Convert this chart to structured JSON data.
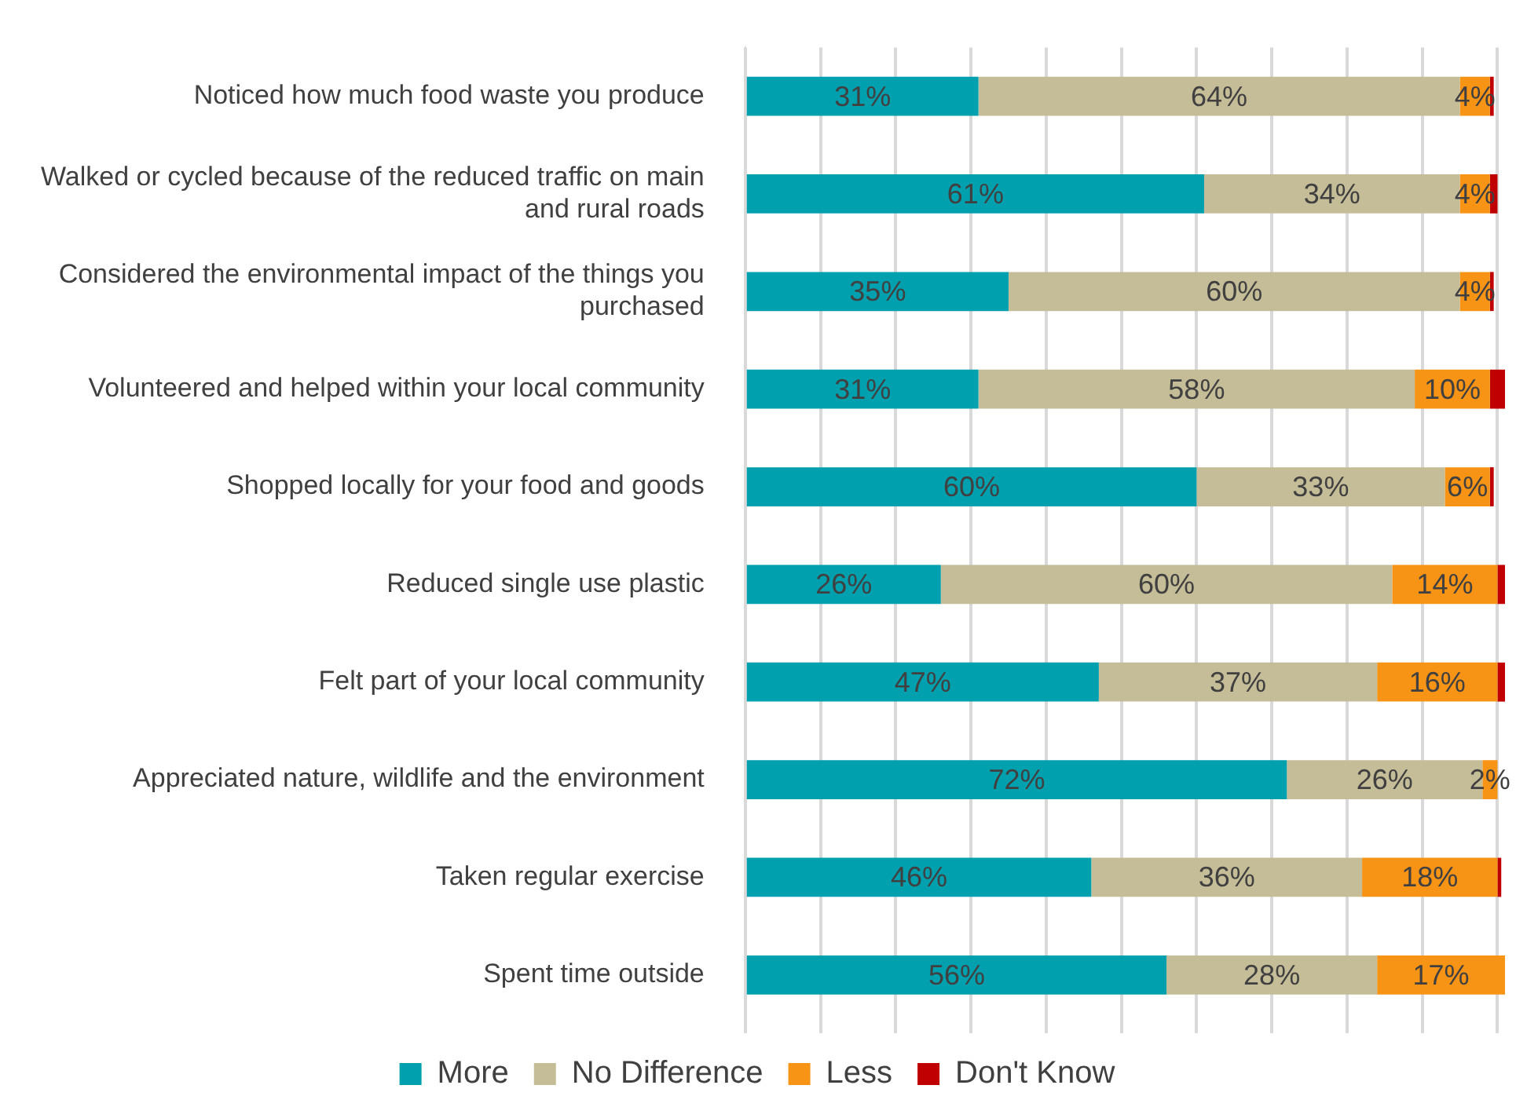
{
  "chart_data": {
    "type": "bar",
    "orientation": "horizontal",
    "stacked": true,
    "categories": [
      "Noticed how much food waste you produce",
      "Walked or cycled because of the reduced traffic on main and rural roads",
      "Considered the environmental impact of the things you purchased",
      "Volunteered and helped within your local community",
      "Shopped locally for your food and goods",
      "Reduced single use plastic",
      "Felt part of your local community",
      "Appreciated nature, wildlife and the environment",
      "Taken regular exercise",
      "Spent time outside"
    ],
    "series": [
      {
        "name": "More",
        "color": "#00a0af",
        "values": [
          31,
          61,
          35,
          31,
          60,
          26,
          47,
          72,
          46,
          56
        ],
        "value_labels": [
          "31%",
          "61%",
          "35%",
          "31%",
          "60%",
          "26%",
          "47%",
          "72%",
          "46%",
          "56%"
        ]
      },
      {
        "name": "No Difference",
        "color": "#c4bd97",
        "values": [
          64,
          34,
          60,
          58,
          33,
          60,
          37,
          26,
          36,
          28
        ],
        "value_labels": [
          "64%",
          "34%",
          "60%",
          "58%",
          "33%",
          "60%",
          "37%",
          "26%",
          "36%",
          "28%"
        ]
      },
      {
        "name": "Less",
        "color": "#f79315",
        "values": [
          4,
          4,
          4,
          10,
          6,
          14,
          16,
          2,
          18,
          17
        ],
        "value_labels": [
          "4%",
          "4%",
          "4%",
          "10%",
          "6%",
          "14%",
          "16%",
          "2%",
          "18%",
          "17%"
        ]
      },
      {
        "name": "Don't Know",
        "color": "#c00000",
        "values": [
          0.5,
          1,
          0.5,
          2,
          0.5,
          1,
          1,
          null,
          0.5,
          null
        ]
      }
    ],
    "xlim": [
      0,
      101
    ],
    "xticks": [
      {
        "value": 0,
        "label": null
      },
      {
        "value": 10,
        "label": null
      },
      {
        "value": 20,
        "label": null
      },
      {
        "value": 30,
        "label": null
      },
      {
        "value": 40,
        "label": null
      },
      {
        "value": 50,
        "label": null
      },
      {
        "value": 60,
        "label": null
      },
      {
        "value": 70,
        "label": null
      },
      {
        "value": 80,
        "label": null
      },
      {
        "value": 90,
        "label": null
      },
      {
        "value": 100,
        "label": null
      }
    ],
    "grid": "x",
    "tick_labels": "y",
    "legend": "bottom"
  }
}
